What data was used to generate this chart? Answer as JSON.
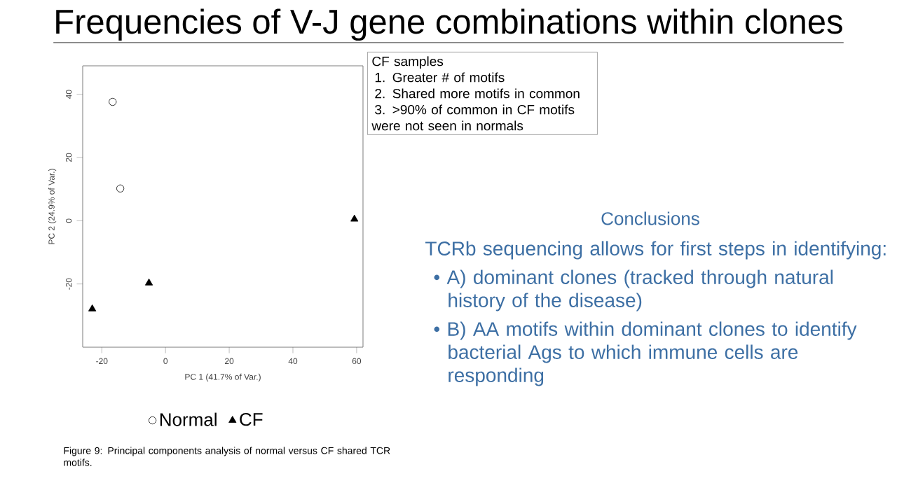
{
  "chart_data": {
    "type": "scatter",
    "title": "Frequencies of V-J gene combinations within clones",
    "xlabel": "PC 1 (41.7% of Var.)",
    "ylabel": "PC 2 (24.9% of Var.)",
    "xlim": [
      -26,
      62
    ],
    "ylim": [
      -40,
      49
    ],
    "xticks": [
      -20,
      0,
      20,
      40,
      60
    ],
    "yticks": [
      -20,
      0,
      20,
      40
    ],
    "grid": false,
    "legend": "bottom",
    "series": [
      {
        "name": "Normal",
        "color": "#000000",
        "marker": "circle",
        "x": [
          -16.6,
          -14.2
        ],
        "values": [
          37.6,
          10.2
        ]
      },
      {
        "name": "CF",
        "color": "#000000",
        "marker": "triangle",
        "x": [
          -23,
          -5.2,
          59.3
        ],
        "values": [
          -27.9,
          -19.7,
          0.5
        ]
      }
    ],
    "annotations": [
      "CF samples",
      "1. Greater # of motifs",
      "2. Shared more motifs in common",
      "3. >90% of common in CF motifs",
      "were not seen in normals",
      "Conclusions",
      "TCRb sequencing allows for first steps in identifying:",
      "• A) dominant clones (tracked through natural history of the disease)",
      "• B)  AA motifs within dominant clones to identify bacterial Ags to which immune cells are responding",
      "Figure 9: Principal components analysis of normal versus CF shared TCR motifs."
    ]
  }
}
